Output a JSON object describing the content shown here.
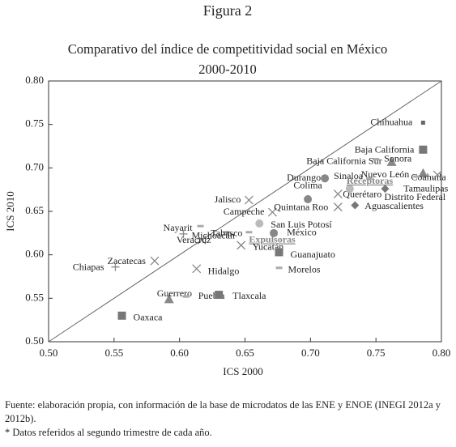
{
  "chart_data": {
    "type": "scatter",
    "figure_label": "Figura 2",
    "title": "Comparativo del índice de competitividad social en México",
    "subtitle": "2000-2010",
    "x_label": "ICS 2000",
    "y_label": "ICS 2010",
    "labels": [
      "Chihuahua",
      "Baja California",
      "Baja California Sur",
      "Sonora",
      "Coahuila",
      "Tamaulipas",
      "Nuevo León",
      "Sinaloa",
      "Durango",
      "Colima",
      "Querétaro",
      "Receptoras",
      "Distrito Federal",
      "Aguascalientes",
      "Jalisco",
      "Campeche",
      "Quintana Roo",
      "San Luis Potosí",
      "México",
      "Expulsoras",
      "Nayarit",
      "Tabasco",
      "Michoacán",
      "Veracruz",
      "Yucatán",
      "Guanajuato",
      "Morelos",
      "Hidalgo",
      "Zacatecas",
      "Chiapas",
      "Guerrero",
      "Puebla",
      "Tlaxcala",
      "Oaxaca"
    ],
    "x": [
      0.786,
      0.786,
      0.762,
      0.75,
      0.786,
      0.797,
      0.781,
      0.745,
      0.711,
      0.698,
      0.721,
      0.73,
      0.757,
      0.734,
      0.653,
      0.671,
      0.721,
      0.661,
      0.672,
      0.653,
      0.616,
      0.636,
      0.603,
      0.617,
      0.647,
      0.676,
      0.676,
      0.613,
      0.581,
      0.551,
      0.592,
      0.605,
      0.63,
      0.556
    ],
    "values": [
      0.752,
      0.721,
      0.707,
      0.71,
      0.694,
      0.692,
      0.69,
      0.688,
      0.688,
      0.664,
      0.67,
      0.676,
      0.676,
      0.657,
      0.663,
      0.649,
      0.655,
      0.636,
      0.625,
      0.626,
      0.633,
      0.626,
      0.624,
      0.617,
      0.611,
      0.603,
      0.585,
      0.584,
      0.593,
      0.586,
      0.549,
      0.552,
      0.554,
      0.53
    ],
    "markers": [
      "small-square",
      "square",
      "triangle",
      "dash",
      "triangle",
      "x",
      "dash",
      "dash",
      "circle",
      "circle",
      "x",
      "light-circle",
      "diamond",
      "diamond",
      "x",
      "x",
      "x",
      "light-circle",
      "circle",
      "dash",
      "dash",
      "dash",
      "plus",
      "x",
      "x",
      "square",
      "dash",
      "x",
      "x",
      "plus",
      "triangle",
      "dash",
      "square",
      "square"
    ],
    "color": "#888888",
    "xlim": [
      0.5,
      0.8
    ],
    "ylim": [
      0.5,
      0.8
    ],
    "xticks": [
      {
        "value": 0.5,
        "label": "0.50"
      },
      {
        "value": 0.55,
        "label": "0.55"
      },
      {
        "value": 0.6,
        "label": "0.60"
      },
      {
        "value": 0.65,
        "label": "0.65"
      },
      {
        "value": 0.7,
        "label": "0.70"
      },
      {
        "value": 0.75,
        "label": "0.75"
      },
      {
        "value": 0.8,
        "label": "0.80"
      }
    ],
    "yticks": [
      {
        "value": 0.5,
        "label": "0.50"
      },
      {
        "value": 0.55,
        "label": "0.55"
      },
      {
        "value": 0.6,
        "label": "0.60"
      },
      {
        "value": 0.65,
        "label": "0.65"
      },
      {
        "value": 0.7,
        "label": "0.70"
      },
      {
        "value": 0.75,
        "label": "0.75"
      },
      {
        "value": 0.8,
        "label": "0.80"
      }
    ],
    "diagonal": true,
    "source": "Fuente: elaboración propia, con información de la base de microdatos de las ENE y ENOE (INEGI 2012a y 2012b).",
    "note": "* Datos referidos al segundo trimestre de cada año."
  }
}
